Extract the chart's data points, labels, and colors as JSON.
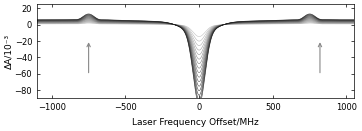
{
  "xlim": [
    -1100,
    1050
  ],
  "ylim": [
    -90,
    25
  ],
  "yticks": [
    20,
    0,
    -20,
    -40,
    -60,
    -80
  ],
  "xticks": [
    -1000,
    -500,
    0,
    500,
    1000
  ],
  "xlabel": "Laser Frequency Offset/MHz",
  "ylabel": "ΔA/10⁻³",
  "n_curves": 16,
  "background_color": "#ffffff"
}
